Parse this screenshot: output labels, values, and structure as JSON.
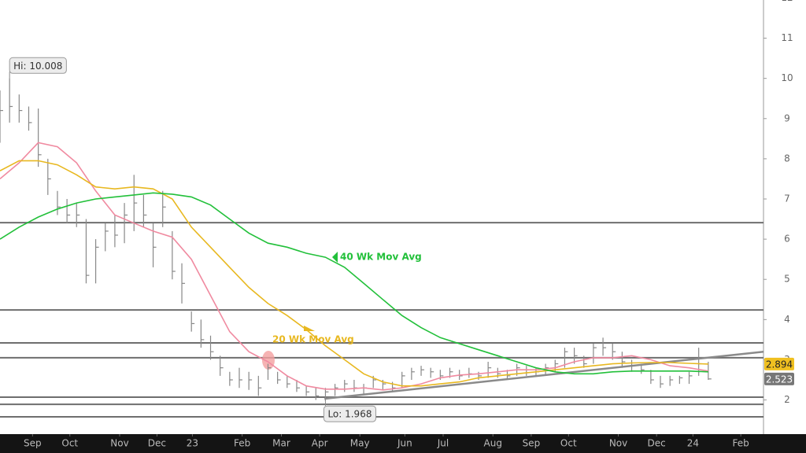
{
  "chart_data": {
    "type": "ohlc",
    "xlim": [
      0,
      79.77
    ],
    "ylim": [
      1.15,
      11.95
    ],
    "yticks": [
      2,
      3,
      4,
      5,
      6,
      7,
      8,
      9,
      10,
      11,
      12
    ],
    "xticks": [
      {
        "value": 3.4,
        "label": "Sep"
      },
      {
        "value": 7.3,
        "label": "Oct"
      },
      {
        "value": 12.5,
        "label": "Nov"
      },
      {
        "value": 16.4,
        "label": "Dec"
      },
      {
        "value": 20.1,
        "label": "23"
      },
      {
        "value": 25.3,
        "label": "Feb"
      },
      {
        "value": 29.4,
        "label": "Mar"
      },
      {
        "value": 33.4,
        "label": "Apr"
      },
      {
        "value": 37.6,
        "label": "May"
      },
      {
        "value": 42.3,
        "label": "Jun"
      },
      {
        "value": 46.3,
        "label": "Jul"
      },
      {
        "value": 51.5,
        "label": "Aug"
      },
      {
        "value": 55.5,
        "label": "Sep"
      },
      {
        "value": 59.4,
        "label": "Oct"
      },
      {
        "value": 64.6,
        "label": "Nov"
      },
      {
        "value": 68.6,
        "label": "Dec"
      },
      {
        "value": 72.4,
        "label": "24"
      },
      {
        "value": 77.4,
        "label": "Feb"
      }
    ],
    "bars": {
      "color": "#888888",
      "x": [
        0,
        1,
        2,
        3,
        4,
        5,
        6,
        7,
        8,
        9,
        10,
        11,
        12,
        13,
        14,
        15,
        16,
        17,
        18,
        19,
        20,
        21,
        22,
        23,
        24,
        25,
        26,
        27,
        28,
        29,
        30,
        31,
        32,
        33,
        34,
        35,
        36,
        37,
        38,
        39,
        40,
        41,
        42,
        43,
        44,
        45,
        46,
        47,
        48,
        49,
        50,
        51,
        52,
        53,
        54,
        55,
        56,
        57,
        58,
        59,
        60,
        61,
        62,
        63,
        64,
        65,
        66,
        67,
        68,
        69,
        70,
        71,
        72,
        73,
        74
      ],
      "high": [
        9.7,
        10.008,
        9.6,
        9.3,
        9.25,
        8.0,
        7.2,
        7.0,
        6.9,
        6.5,
        6.0,
        6.4,
        6.6,
        6.9,
        7.6,
        7.1,
        6.4,
        7.2,
        6.2,
        5.4,
        4.2,
        4.0,
        3.6,
        3.1,
        2.7,
        2.8,
        2.7,
        2.6,
        2.9,
        2.7,
        2.6,
        2.5,
        2.35,
        2.3,
        2.3,
        2.4,
        2.5,
        2.5,
        2.4,
        2.6,
        2.5,
        2.45,
        2.7,
        2.8,
        2.85,
        2.8,
        2.75,
        2.8,
        2.75,
        2.8,
        2.7,
        2.95,
        2.8,
        2.75,
        2.9,
        2.85,
        2.8,
        2.9,
        3.0,
        3.3,
        3.3,
        3.1,
        3.4,
        3.55,
        3.4,
        3.2,
        3.0,
        2.9,
        2.75,
        2.6,
        2.6,
        2.6,
        2.7,
        3.3,
        2.95
      ],
      "low": [
        8.4,
        8.9,
        8.9,
        8.7,
        7.8,
        7.1,
        6.6,
        6.4,
        6.3,
        4.9,
        4.9,
        5.7,
        5.8,
        5.9,
        6.2,
        6.3,
        5.3,
        6.3,
        5.0,
        4.4,
        3.7,
        3.3,
        3.0,
        2.6,
        2.35,
        2.3,
        2.25,
        2.1,
        2.5,
        2.4,
        2.3,
        2.2,
        2.1,
        2.0,
        1.968,
        2.1,
        2.2,
        2.2,
        2.15,
        2.3,
        2.25,
        2.2,
        2.3,
        2.5,
        2.6,
        2.55,
        2.5,
        2.55,
        2.5,
        2.55,
        2.5,
        2.55,
        2.55,
        2.5,
        2.6,
        2.6,
        2.6,
        2.6,
        2.7,
        2.8,
        2.9,
        2.8,
        2.9,
        3.1,
        3.0,
        2.8,
        2.7,
        2.65,
        2.4,
        2.3,
        2.35,
        2.4,
        2.4,
        2.6,
        2.5
      ],
      "close": [
        9.2,
        9.3,
        9.2,
        8.9,
        8.1,
        7.5,
        6.8,
        6.6,
        6.6,
        5.1,
        5.8,
        6.2,
        6.1,
        6.6,
        6.9,
        6.6,
        5.8,
        6.8,
        5.2,
        4.9,
        3.9,
        3.5,
        3.2,
        2.8,
        2.5,
        2.5,
        2.5,
        2.3,
        2.8,
        2.5,
        2.4,
        2.3,
        2.2,
        2.1,
        2.2,
        2.3,
        2.4,
        2.3,
        2.3,
        2.5,
        2.4,
        2.3,
        2.6,
        2.7,
        2.75,
        2.7,
        2.6,
        2.7,
        2.6,
        2.65,
        2.6,
        2.8,
        2.65,
        2.6,
        2.8,
        2.75,
        2.7,
        2.8,
        2.9,
        3.2,
        3.1,
        2.9,
        3.3,
        3.3,
        3.2,
        2.95,
        2.85,
        2.75,
        2.5,
        2.4,
        2.5,
        2.55,
        2.6,
        2.9,
        2.523
      ]
    },
    "series": [
      {
        "color": "#f08aa0",
        "x": [
          0,
          2,
          4,
          6,
          8,
          10,
          12,
          14,
          16,
          18,
          20,
          22,
          24,
          26,
          28,
          30,
          32,
          34,
          36,
          38,
          40,
          42,
          44,
          46,
          48,
          50,
          52,
          54,
          56,
          58,
          60,
          62,
          64,
          66,
          68,
          70,
          72,
          74
        ],
        "values": [
          7.5,
          7.9,
          8.4,
          8.3,
          7.9,
          7.2,
          6.6,
          6.4,
          6.2,
          6.05,
          5.5,
          4.6,
          3.7,
          3.2,
          2.95,
          2.6,
          2.35,
          2.27,
          2.27,
          2.3,
          2.25,
          2.3,
          2.4,
          2.55,
          2.62,
          2.65,
          2.7,
          2.75,
          2.75,
          2.8,
          2.95,
          3.05,
          3.05,
          3.1,
          3.0,
          2.85,
          2.8,
          2.72
        ]
      },
      {
        "name": "20 Wk Mov Avg",
        "color": "#e8b820",
        "x": [
          0,
          2,
          4,
          6,
          8,
          10,
          12,
          14,
          16,
          18,
          20,
          22,
          24,
          26,
          28,
          30,
          32,
          34,
          36,
          38,
          40,
          42,
          44,
          46,
          48,
          50,
          52,
          54,
          56,
          58,
          60,
          62,
          64,
          66,
          68,
          70,
          72,
          74
        ],
        "values": [
          7.7,
          7.95,
          7.95,
          7.85,
          7.6,
          7.3,
          7.25,
          7.3,
          7.25,
          7.0,
          6.3,
          5.8,
          5.3,
          4.8,
          4.4,
          4.1,
          3.75,
          3.35,
          3.0,
          2.65,
          2.45,
          2.35,
          2.35,
          2.4,
          2.45,
          2.55,
          2.6,
          2.65,
          2.7,
          2.75,
          2.8,
          2.85,
          2.9,
          2.92,
          2.93,
          2.93,
          2.91,
          2.894
        ]
      },
      {
        "name": "40 Wk Mov Avg",
        "color": "#22c03a",
        "x": [
          0,
          2,
          4,
          6,
          8,
          10,
          12,
          14,
          16,
          18,
          20,
          22,
          24,
          26,
          28,
          30,
          32,
          34,
          36,
          38,
          40,
          42,
          44,
          46,
          48,
          50,
          52,
          54,
          56,
          58,
          60,
          62,
          64,
          66,
          68,
          70,
          72,
          74
        ],
        "values": [
          6.0,
          6.3,
          6.55,
          6.75,
          6.9,
          7.0,
          7.05,
          7.1,
          7.15,
          7.12,
          7.05,
          6.85,
          6.5,
          6.15,
          5.9,
          5.8,
          5.65,
          5.55,
          5.3,
          4.9,
          4.5,
          4.1,
          3.8,
          3.55,
          3.4,
          3.25,
          3.1,
          2.95,
          2.8,
          2.7,
          2.65,
          2.65,
          2.7,
          2.72,
          2.72,
          2.72,
          2.72,
          2.7
        ]
      }
    ],
    "hlines": [
      6.41,
      4.24,
      3.42,
      3.05,
      2.07,
      1.89,
      1.58
    ],
    "trendline": {
      "x": [
        33.9,
        79.77
      ],
      "values": [
        2.03,
        3.2
      ]
    },
    "high_label": "Hi: 10.008",
    "low_label": "Lo: 1.968",
    "last_labels": [
      {
        "value": 2.894,
        "label": "2.894",
        "color": "#f0c020"
      },
      {
        "value": 2.523,
        "label": "2.523",
        "color": "#777777"
      }
    ]
  }
}
